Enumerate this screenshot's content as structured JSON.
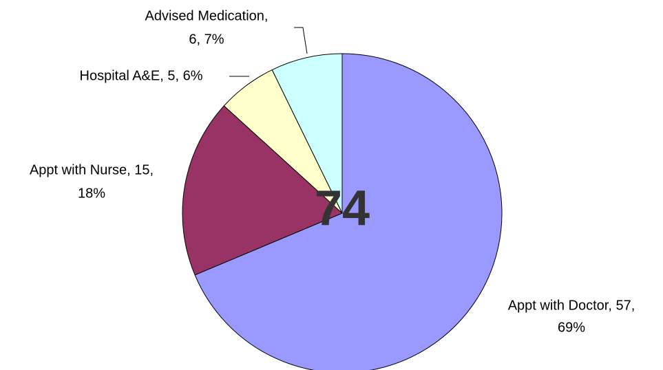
{
  "chart_data": {
    "type": "pie",
    "values": [
      57,
      15,
      5,
      6
    ],
    "value_labels": [
      [
        "Appt with Doctor, 57,",
        "69%"
      ],
      [
        "Appt with Nurse, 15,",
        "18%"
      ],
      [
        "Hospital A&E, 5, 6%"
      ],
      [
        "Advised Medication,",
        "6, 7%"
      ]
    ],
    "colors": [
      "#9999FF",
      "#993366",
      "#FFFFCC",
      "#CCFFFF"
    ],
    "center_label": 74
  }
}
